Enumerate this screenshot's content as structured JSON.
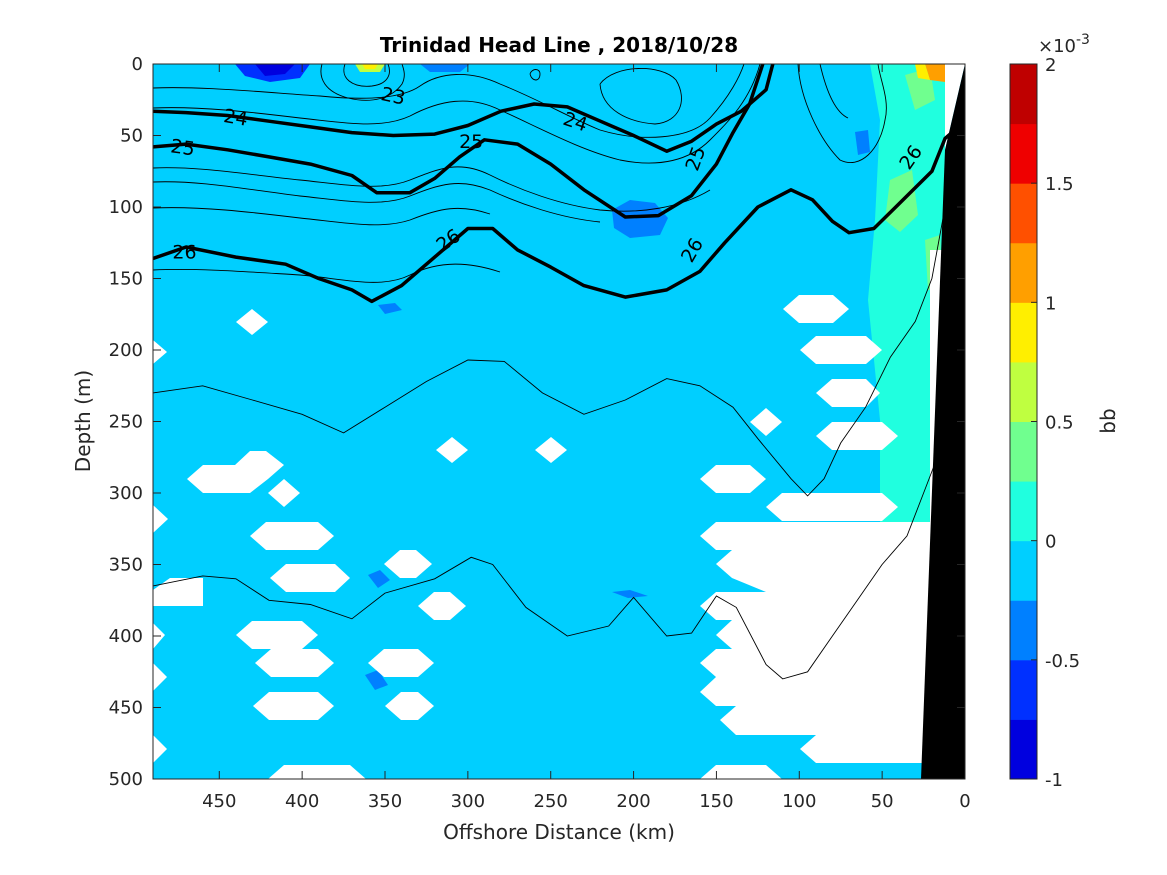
{
  "chart_data": {
    "type": "heatmap",
    "title": "Trinidad Head Line , 2018/10/28",
    "xlabel": "Offshore Distance (km)",
    "ylabel": "Depth (m)",
    "xlim": [
      490,
      0
    ],
    "ylim": [
      500,
      0
    ],
    "x_reversed": true,
    "y_reversed": true,
    "xticks": [
      450,
      400,
      350,
      300,
      250,
      200,
      150,
      100,
      50,
      0
    ],
    "yticks": [
      0,
      50,
      100,
      150,
      200,
      250,
      300,
      350,
      400,
      450,
      500
    ],
    "colorbar": {
      "label": "bb",
      "exponent_label": "×10",
      "exponent_power": "-3",
      "range": [
        -1,
        2
      ],
      "ticks": [
        "2",
        "1.5",
        "1",
        "0.5",
        "0",
        "-0.5",
        "-1"
      ],
      "tick_values": [
        2,
        1.5,
        1,
        0.5,
        0,
        -0.5,
        -1
      ],
      "colors": [
        "#00008F",
        "#0000DF",
        "#0030FF",
        "#0080FF",
        "#00CFFF",
        "#20FFDF",
        "#70FF8F",
        "#BFFF40",
        "#FFEF00",
        "#FF9F00",
        "#FF5000",
        "#EF0000",
        "#BF0000"
      ]
    },
    "background_value": 0.1,
    "contours": {
      "labeled_levels": [
        "23",
        "24",
        "25",
        "26"
      ],
      "isolines": [
        {
          "level": 24,
          "points": [
            [
              490,
              33
            ],
            [
              470,
              34
            ],
            [
              445,
              36
            ],
            [
              420,
              40
            ],
            [
              395,
              44
            ],
            [
              370,
              48
            ],
            [
              345,
              50
            ],
            [
              320,
              49
            ],
            [
              300,
              43
            ],
            [
              280,
              33
            ],
            [
              260,
              28
            ],
            [
              240,
              30
            ],
            [
              220,
              40
            ],
            [
              200,
              50
            ],
            [
              180,
              61
            ],
            [
              165,
              54
            ],
            [
              150,
              42
            ],
            [
              135,
              33
            ],
            [
              120,
              18
            ],
            [
              116,
              0
            ]
          ]
        },
        {
          "level": 25,
          "points": [
            [
              490,
              58
            ],
            [
              470,
              56
            ],
            [
              445,
              60
            ],
            [
              420,
              65
            ],
            [
              395,
              70
            ],
            [
              370,
              78
            ],
            [
              355,
              90
            ],
            [
              335,
              90
            ],
            [
              320,
              80
            ],
            [
              305,
              65
            ],
            [
              290,
              53
            ],
            [
              270,
              56
            ],
            [
              250,
              70
            ],
            [
              230,
              88
            ],
            [
              205,
              107
            ],
            [
              185,
              106
            ],
            [
              165,
              92
            ],
            [
              150,
              70
            ],
            [
              140,
              48
            ],
            [
              130,
              28
            ],
            [
              122,
              0
            ]
          ]
        },
        {
          "level": 26,
          "points": [
            [
              490,
              136
            ],
            [
              470,
              128
            ],
            [
              440,
              135
            ],
            [
              410,
              140
            ],
            [
              390,
              150
            ],
            [
              370,
              158
            ],
            [
              358,
              166
            ],
            [
              340,
              155
            ],
            [
              320,
              135
            ],
            [
              300,
              115
            ],
            [
              285,
              115
            ],
            [
              270,
              130
            ],
            [
              250,
              142
            ],
            [
              230,
              155
            ],
            [
              205,
              163
            ],
            [
              180,
              158
            ],
            [
              160,
              145
            ],
            [
              145,
              125
            ],
            [
              125,
              100
            ],
            [
              105,
              88
            ],
            [
              92,
              95
            ],
            [
              80,
              110
            ],
            [
              70,
              118
            ],
            [
              55,
              115
            ],
            [
              40,
              98
            ],
            [
              20,
              75
            ],
            [
              12,
              52
            ],
            [
              0,
              40
            ]
          ]
        }
      ],
      "thin_isolines": [
        {
          "points": [
            [
              490,
              230
            ],
            [
              460,
              225
            ],
            [
              430,
              235
            ],
            [
              400,
              245
            ],
            [
              375,
              258
            ],
            [
              350,
              240
            ],
            [
              325,
              222
            ],
            [
              300,
              207
            ],
            [
              278,
              208
            ],
            [
              255,
              230
            ],
            [
              230,
              245
            ],
            [
              205,
              235
            ],
            [
              180,
              220
            ],
            [
              160,
              225
            ],
            [
              140,
              240
            ],
            [
              125,
              262
            ],
            [
              105,
              290
            ],
            [
              95,
              302
            ],
            [
              85,
              290
            ],
            [
              75,
              265
            ],
            [
              60,
              240
            ],
            [
              45,
              205
            ],
            [
              30,
              180
            ],
            [
              20,
              150
            ],
            [
              12,
              100
            ]
          ]
        },
        {
          "points": [
            [
              490,
              365
            ],
            [
              460,
              358
            ],
            [
              440,
              360
            ],
            [
              420,
              375
            ],
            [
              395,
              378
            ],
            [
              370,
              388
            ],
            [
              350,
              370
            ],
            [
              320,
              360
            ],
            [
              298,
              345
            ],
            [
              285,
              350
            ],
            [
              265,
              380
            ],
            [
              240,
              400
            ],
            [
              215,
              393
            ],
            [
              200,
              373
            ],
            [
              180,
              400
            ],
            [
              165,
              398
            ],
            [
              150,
              372
            ],
            [
              138,
              380
            ],
            [
              120,
              420
            ],
            [
              110,
              430
            ],
            [
              95,
              425
            ],
            [
              80,
              400
            ],
            [
              65,
              375
            ],
            [
              50,
              350
            ],
            [
              35,
              330
            ],
            [
              25,
              300
            ],
            [
              15,
              270
            ]
          ]
        }
      ]
    }
  }
}
